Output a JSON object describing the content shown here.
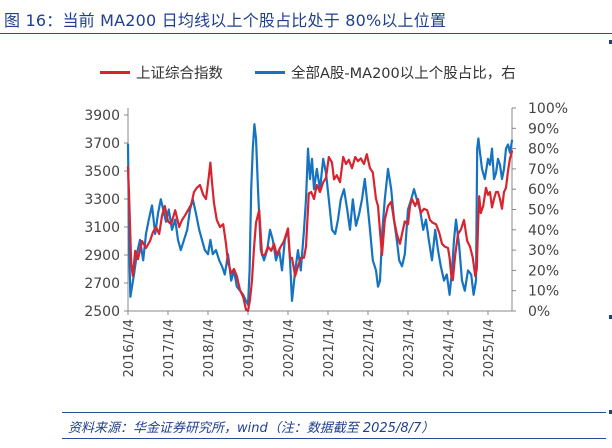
{
  "title": "图 16：当前 MA200 日均线以上个股占比处于 80%以上位置",
  "source": "资料来源：华金证券研究所，wind（注：数据截至 2025/8/7）",
  "colors": {
    "red": "#d9232e",
    "blue": "#1673c1",
    "accent": "#1f3f8f",
    "axis": "#888888"
  },
  "chart_data": {
    "type": "line",
    "legend_position": "top",
    "grid": false,
    "left_axis": {
      "ticks": [
        2500,
        2700,
        2900,
        3100,
        3300,
        3500,
        3700,
        3900
      ],
      "range": [
        2500,
        3950
      ]
    },
    "right_axis": {
      "ticks": [
        "0%",
        "10%",
        "20%",
        "30%",
        "40%",
        "50%",
        "60%",
        "70%",
        "80%",
        "90%",
        "100%"
      ],
      "range": [
        0,
        100
      ]
    },
    "x_ticks": [
      "2016/1/4",
      "2017/1/4",
      "2018/1/4",
      "2019/1/4",
      "2020/1/4",
      "2021/1/4",
      "2022/1/4",
      "2023/1/4",
      "2024/1/4",
      "2025/1/4"
    ],
    "x_range": [
      2016.0,
      2025.6
    ],
    "series": [
      {
        "name": "上证综合指数",
        "axis": "left",
        "color": "#d9232e",
        "x": [
          2016.0,
          2016.03,
          2016.08,
          2016.12,
          2016.18,
          2016.25,
          2016.35,
          2016.45,
          2016.55,
          2016.62,
          2016.7,
          2016.78,
          2016.85,
          2016.92,
          2017.0,
          2017.08,
          2017.18,
          2017.28,
          2017.35,
          2017.42,
          2017.5,
          2017.58,
          2017.65,
          2017.72,
          2017.8,
          2017.88,
          2017.95,
          2018.02,
          2018.06,
          2018.1,
          2018.15,
          2018.22,
          2018.3,
          2018.38,
          2018.45,
          2018.5,
          2018.58,
          2018.65,
          2018.72,
          2018.8,
          2018.88,
          2018.95,
          2019.0,
          2019.05,
          2019.1,
          2019.15,
          2019.2,
          2019.28,
          2019.35,
          2019.42,
          2019.5,
          2019.58,
          2019.65,
          2019.72,
          2019.8,
          2019.9,
          2020.0,
          2020.05,
          2020.1,
          2020.18,
          2020.25,
          2020.32,
          2020.4,
          2020.45,
          2020.52,
          2020.58,
          2020.65,
          2020.72,
          2020.8,
          2020.88,
          2020.95,
          2021.02,
          2021.1,
          2021.15,
          2021.22,
          2021.3,
          2021.38,
          2021.45,
          2021.52,
          2021.6,
          2021.68,
          2021.75,
          2021.82,
          2021.9,
          2021.97,
          2022.05,
          2022.12,
          2022.2,
          2022.25,
          2022.3,
          2022.35,
          2022.42,
          2022.5,
          2022.58,
          2022.65,
          2022.72,
          2022.8,
          2022.85,
          2022.92,
          2023.0,
          2023.05,
          2023.1,
          2023.18,
          2023.25,
          2023.32,
          2023.4,
          2023.48,
          2023.55,
          2023.62,
          2023.7,
          2023.78,
          2023.85,
          2023.92,
          2024.0,
          2024.04,
          2024.08,
          2024.12,
          2024.18,
          2024.25,
          2024.32,
          2024.4,
          2024.48,
          2024.55,
          2024.62,
          2024.68,
          2024.72,
          2024.75,
          2024.78,
          2024.82,
          2024.88,
          2024.95,
          2025.0,
          2025.05,
          2025.1,
          2025.15,
          2025.2,
          2025.25,
          2025.3,
          2025.35,
          2025.4,
          2025.45,
          2025.5,
          2025.55,
          2025.6
        ],
        "values": [
          3530,
          3300,
          2840,
          2750,
          2930,
          2870,
          3000,
          2950,
          3000,
          3060,
          3100,
          3050,
          3180,
          3250,
          3140,
          3120,
          3220,
          3100,
          3150,
          3180,
          3220,
          3260,
          3350,
          3380,
          3400,
          3330,
          3300,
          3460,
          3560,
          3420,
          3270,
          3150,
          3100,
          3120,
          2980,
          2850,
          2770,
          2800,
          2750,
          2650,
          2600,
          2510,
          2480,
          2580,
          2720,
          2950,
          3130,
          3220,
          2900,
          2900,
          2960,
          2930,
          2980,
          2900,
          2950,
          3000,
          3090,
          2880,
          2880,
          2750,
          2820,
          2880,
          2880,
          2960,
          3340,
          3350,
          3300,
          3400,
          3350,
          3420,
          3450,
          3600,
          3560,
          3440,
          3470,
          3420,
          3600,
          3550,
          3580,
          3520,
          3600,
          3570,
          3590,
          3550,
          3620,
          3520,
          3490,
          3300,
          3250,
          3070,
          2900,
          3150,
          3250,
          3280,
          3150,
          3050,
          2980,
          3050,
          3140,
          3120,
          3250,
          3300,
          3250,
          3300,
          3200,
          3230,
          3220,
          3150,
          3130,
          3120,
          3060,
          2980,
          2960,
          2950,
          2880,
          2760,
          2720,
          2900,
          3050,
          3080,
          3150,
          3000,
          2960,
          2880,
          2750,
          2800,
          3100,
          3320,
          3200,
          3250,
          3380,
          3330,
          3350,
          3240,
          3300,
          3350,
          3350,
          3300,
          3230,
          3350,
          3380,
          3500,
          3590,
          3640
        ]
      },
      {
        "name": "全部A股-MA200以上个股占比，右",
        "axis": "right",
        "color": "#1673c1",
        "x": [
          2016.0,
          2016.03,
          2016.06,
          2016.1,
          2016.15,
          2016.22,
          2016.3,
          2016.38,
          2016.45,
          2016.52,
          2016.6,
          2016.68,
          2016.75,
          2016.82,
          2016.88,
          2016.95,
          2017.02,
          2017.1,
          2017.18,
          2017.25,
          2017.32,
          2017.4,
          2017.48,
          2017.55,
          2017.62,
          2017.7,
          2017.78,
          2017.85,
          2017.92,
          2018.0,
          2018.06,
          2018.12,
          2018.2,
          2018.28,
          2018.35,
          2018.42,
          2018.5,
          2018.58,
          2018.65,
          2018.72,
          2018.8,
          2018.88,
          2018.95,
          2019.0,
          2019.04,
          2019.08,
          2019.12,
          2019.16,
          2019.2,
          2019.25,
          2019.32,
          2019.4,
          2019.48,
          2019.55,
          2019.62,
          2019.7,
          2019.78,
          2019.85,
          2019.92,
          2020.0,
          2020.05,
          2020.1,
          2020.18,
          2020.25,
          2020.32,
          2020.4,
          2020.45,
          2020.5,
          2020.55,
          2020.6,
          2020.65,
          2020.72,
          2020.8,
          2020.88,
          2020.95,
          2021.02,
          2021.1,
          2021.18,
          2021.25,
          2021.32,
          2021.4,
          2021.48,
          2021.55,
          2021.62,
          2021.7,
          2021.78,
          2021.85,
          2021.92,
          2022.0,
          2022.05,
          2022.12,
          2022.2,
          2022.25,
          2022.3,
          2022.36,
          2022.42,
          2022.5,
          2022.58,
          2022.65,
          2022.72,
          2022.78,
          2022.85,
          2022.92,
          2023.0,
          2023.08,
          2023.15,
          2023.22,
          2023.3,
          2023.38,
          2023.45,
          2023.52,
          2023.6,
          2023.68,
          2023.75,
          2023.82,
          2023.9,
          2023.97,
          2024.04,
          2024.1,
          2024.15,
          2024.2,
          2024.28,
          2024.35,
          2024.42,
          2024.5,
          2024.58,
          2024.64,
          2024.7,
          2024.73,
          2024.76,
          2024.8,
          2024.85,
          2024.92,
          2025.0,
          2025.05,
          2025.1,
          2025.15,
          2025.2,
          2025.25,
          2025.3,
          2025.35,
          2025.4,
          2025.45,
          2025.5,
          2025.55,
          2025.6
        ],
        "values": [
          82,
          30,
          7,
          12,
          18,
          28,
          35,
          25,
          38,
          45,
          52,
          38,
          48,
          55,
          50,
          44,
          50,
          40,
          45,
          35,
          30,
          35,
          40,
          50,
          55,
          48,
          40,
          35,
          30,
          28,
          35,
          28,
          30,
          25,
          22,
          18,
          28,
          15,
          20,
          12,
          10,
          8,
          5,
          3,
          20,
          60,
          80,
          92,
          85,
          60,
          30,
          25,
          30,
          40,
          35,
          25,
          30,
          20,
          35,
          40,
          25,
          5,
          20,
          30,
          20,
          40,
          55,
          80,
          65,
          75,
          60,
          70,
          60,
          75,
          68,
          55,
          40,
          38,
          45,
          55,
          60,
          50,
          40,
          55,
          42,
          48,
          55,
          65,
          50,
          40,
          25,
          20,
          12,
          15,
          40,
          55,
          70,
          60,
          45,
          35,
          25,
          22,
          28,
          50,
          55,
          60,
          55,
          50,
          40,
          45,
          35,
          25,
          40,
          30,
          22,
          15,
          18,
          8,
          20,
          35,
          45,
          32,
          15,
          10,
          20,
          18,
          8,
          15,
          80,
          85,
          78,
          70,
          65,
          75,
          72,
          80,
          65,
          68,
          75,
          72,
          65,
          70,
          80,
          82,
          78,
          84
        ]
      }
    ]
  }
}
